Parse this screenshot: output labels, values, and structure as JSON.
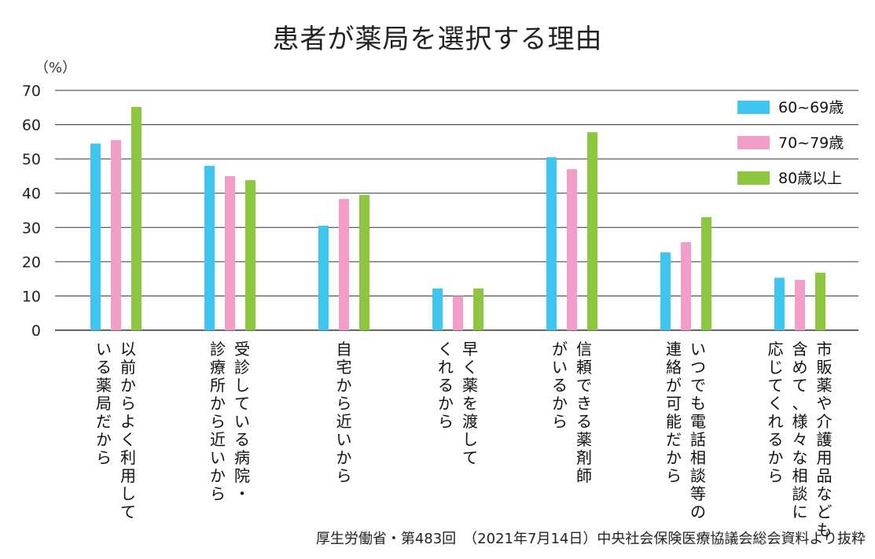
{
  "chart_data": {
    "type": "bar",
    "title": "患者が薬局を選択する理由",
    "ylabel": "（%）",
    "ylim": [
      0,
      70
    ],
    "yticks": [
      0,
      10,
      20,
      30,
      40,
      50,
      60,
      70
    ],
    "grid": true,
    "legend_position": "top-right",
    "categories": [
      [
        "以前からよく利用して",
        "いる薬局だから"
      ],
      [
        "受診している病院・",
        "診療所から近いから"
      ],
      [
        "自宅から近いから"
      ],
      [
        "早く薬を渡して",
        "くれるから"
      ],
      [
        "信頼できる薬剤師",
        "がいるから"
      ],
      [
        "いつでも電話相談等の",
        "連絡が可能だから"
      ],
      [
        "市販薬や介護用品なども",
        "含めて、様々な相談に",
        "応じてくれるから"
      ]
    ],
    "series": [
      {
        "name": "60~69歳",
        "color": "#3ec6f0",
        "values": [
          54.5,
          48,
          30.5,
          12.2,
          50.5,
          22.7,
          15.3
        ]
      },
      {
        "name": "70~79歳",
        "color": "#f29ec8",
        "values": [
          55.5,
          45,
          38.3,
          10,
          47,
          25.7,
          14.7
        ]
      },
      {
        "name": "80歳以上",
        "color": "#8dc63f",
        "values": [
          65.2,
          43.8,
          39.5,
          12.2,
          57.8,
          33,
          16.8
        ]
      }
    ]
  },
  "source": "厚生労働省・第483回　（2021年7月14日）中央社会保険医療協議会総会資料より抜粋"
}
